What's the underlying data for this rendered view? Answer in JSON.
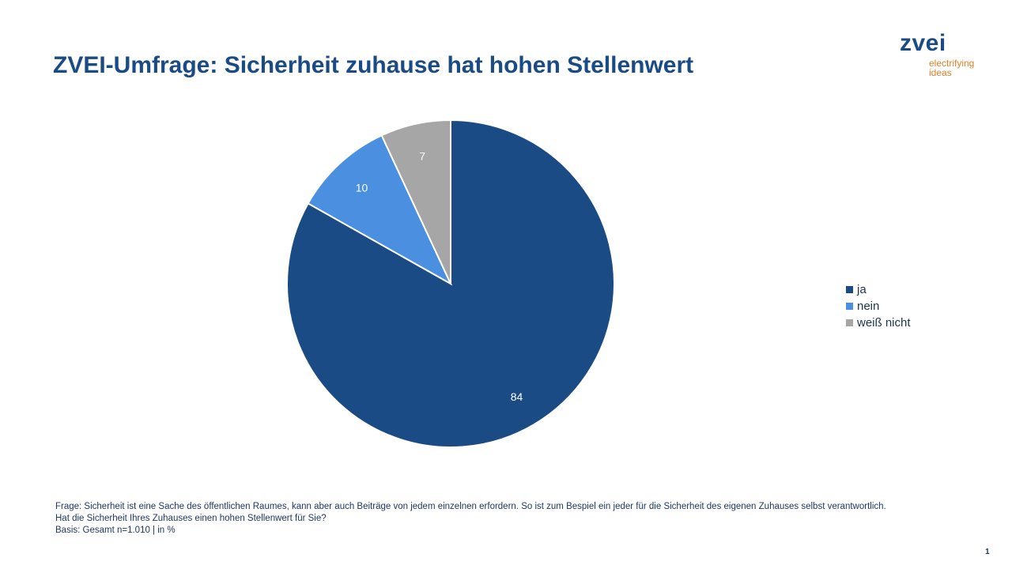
{
  "slide": {
    "title": "ZVEI-Umfrage: Sicherheit zuhause hat hohen Stellenwert",
    "page_number": "1"
  },
  "logo": {
    "wordmark": "zvei",
    "tagline_line1": "electrifying",
    "tagline_line2": "ideas",
    "brand_color": "#1a4b84",
    "tagline_color": "#e0802a"
  },
  "footnote": {
    "line1": "Frage: Sicherheit ist eine Sache des öffentlichen Raumes, kann aber auch Beiträge von jedem einzelnen erfordern. So ist zum Bespiel ein jeder für die Sicherheit des eigenen Zuhauses selbst verantwortlich.",
    "line2": "Hat die Sicherheit Ihres Zuhauses einen hohen Stellenwert für Sie?",
    "line3": "Basis: Gesamt n=1.010 | in %"
  },
  "chart_data": {
    "type": "pie",
    "start_angle": "12 o'clock",
    "direction": "clockwise",
    "legend_position": "right",
    "slices": [
      {
        "label": "ja",
        "value": 84,
        "color": "#1a4b84",
        "label_color": "#ffffff"
      },
      {
        "label": "nein",
        "value": 10,
        "color": "#4a8fe0",
        "label_color": "#ffffff"
      },
      {
        "label": "weiß nicht",
        "value": 7,
        "color": "#a6a6a6",
        "label_color": "#ffffff"
      }
    ]
  }
}
